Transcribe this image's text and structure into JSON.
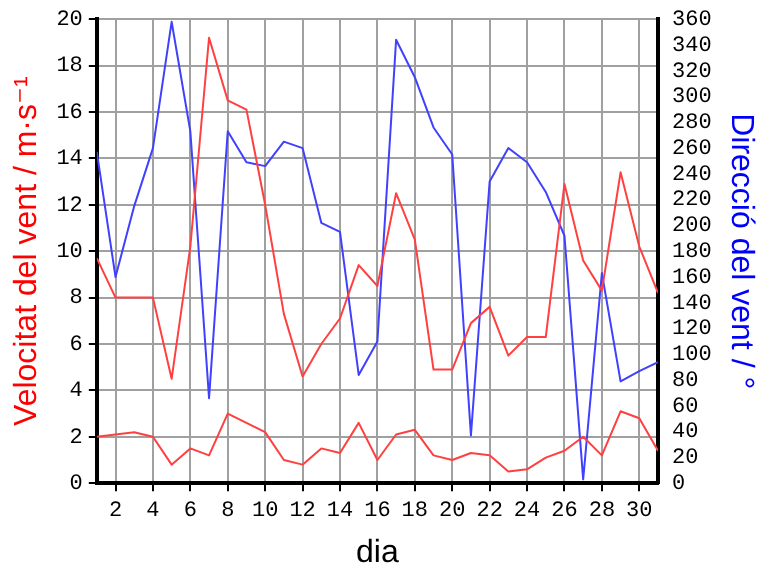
{
  "chart_data": {
    "type": "line",
    "xlabel": "dia",
    "ylabel": "Velocitat del vent / m·s⁻¹",
    "y2label": "Direcció del vent / °",
    "x": [
      1,
      2,
      3,
      4,
      5,
      6,
      7,
      8,
      9,
      10,
      11,
      12,
      13,
      14,
      15,
      16,
      17,
      18,
      19,
      20,
      21,
      22,
      23,
      24,
      25,
      26,
      27,
      28,
      29,
      30,
      31
    ],
    "series": [
      {
        "color": "#ff4040",
        "values": [
          9.7,
          8,
          8,
          8,
          4.5,
          10.2,
          19.2,
          16.5,
          16.1,
          12,
          7.3,
          4.6,
          6,
          7.1,
          9.4,
          8.5,
          12.5,
          10.5,
          4.9,
          4.9,
          6.9,
          7.6,
          5.5,
          6.3,
          6.3,
          12.9,
          9.6,
          8.3,
          13.4,
          10.2,
          8.2
        ]
      },
      {
        "color": "#ff4040",
        "values": [
          2,
          2.1,
          2.2,
          2,
          0.8,
          1.5,
          1.2,
          3,
          2.6,
          2.2,
          1,
          0.8,
          1.5,
          1.3,
          2.6,
          1,
          2.1,
          2.3,
          1.2,
          1,
          1.3,
          1.2,
          0.5,
          0.6,
          1.1,
          1.4,
          2,
          1.2,
          3.1,
          2.8,
          1.4
        ]
      },
      {
        "color": "#4040ff",
        "axis": "y2",
        "values": [
          257,
          160,
          215,
          260,
          358,
          273,
          66,
          273,
          249,
          246,
          265,
          260,
          202,
          195,
          84,
          110,
          344,
          315,
          276,
          255,
          37,
          234,
          260,
          249,
          226,
          192,
          3,
          163,
          79,
          87,
          94
        ]
      }
    ],
    "xlim": [
      1,
      31
    ],
    "xticks": [
      2,
      4,
      6,
      8,
      10,
      12,
      14,
      16,
      18,
      20,
      22,
      24,
      26,
      28,
      30
    ],
    "ylim": [
      0,
      20
    ],
    "yticks": [
      0,
      2,
      4,
      6,
      8,
      10,
      12,
      14,
      16,
      18,
      20
    ],
    "y2lim": [
      0,
      360
    ],
    "y2ticks": [
      0,
      20,
      40,
      60,
      80,
      100,
      120,
      140,
      160,
      180,
      200,
      220,
      240,
      260,
      280,
      300,
      320,
      340,
      360
    ],
    "grid": true,
    "legend": false,
    "marker": "none",
    "line_style": "solid"
  }
}
